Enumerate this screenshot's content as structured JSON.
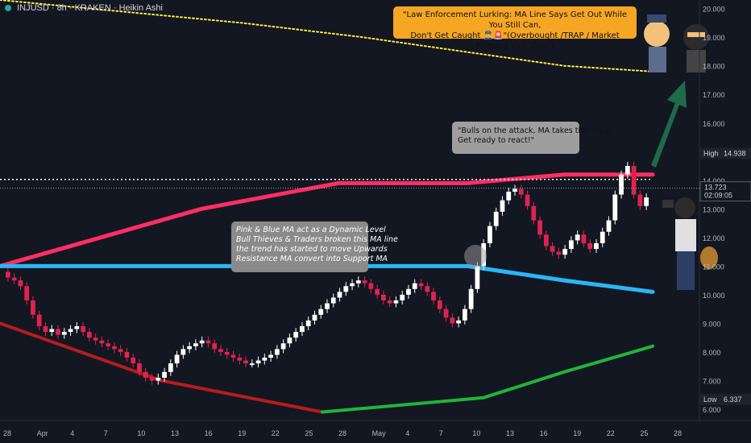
{
  "header": {
    "title": "INJUSD · 8h · KRAKEN · Heikin Ashi"
  },
  "price_scale": {
    "ticks": [
      "20.000",
      "19.000",
      "18.000",
      "17.000",
      "16.000",
      "15.000",
      "14.000",
      "13.000",
      "12.000",
      "11.000",
      "10.000",
      "9.000",
      "8.000",
      "7.000",
      "6.000"
    ],
    "current_price": "13.723",
    "countdown": "02:09:05",
    "high_label": "High",
    "high_value": "14.938",
    "low_label": "Low",
    "low_value": "6.337"
  },
  "time_scale": {
    "ticks": [
      "28",
      "Apr",
      "4",
      "7",
      "10",
      "13",
      "16",
      "19",
      "22",
      "25",
      "28",
      "May",
      "4",
      "7",
      "10",
      "13",
      "16",
      "19",
      "22",
      "25",
      "28"
    ]
  },
  "annotations": {
    "callout_law": {
      "line1": "\"Law Enforcement Lurking: MA Line Says Get Out While You Still Can,",
      "line2": "Don't Get Caught 👮‍♂️🚨\"(Overbought /TRAP / Market Pullback / LQ Zone)"
    },
    "callout_bulls": {
      "line1": "\"Bulls on the attack, MA takes the crack.",
      "line2": "Get ready to react!\""
    },
    "callout_ma": {
      "lines": [
        "Pink & Blue MA act as a Dynamic Level",
        "Bull Thieves & Traders broken this MA line",
        "the trend has started to move Upwards",
        "Resistance MA convert into Support MA"
      ]
    }
  },
  "colors": {
    "background": "#131722",
    "up": "#ffffff",
    "down": "#e0234e",
    "ma_pink": "#ff2e63",
    "ma_blue": "#29b6f6",
    "ma_yellow": "#ffeb3b",
    "ma_red": "#b71c1c",
    "ma_green": "#22b33a",
    "arrow": "#1e6b4a"
  },
  "chart_data": {
    "type": "candlestick",
    "style": "Heikin Ashi",
    "timeframe": "8h",
    "symbol": "INJUSD",
    "exchange": "KRAKEN",
    "ylim": [
      5.6,
      20.3
    ],
    "x_range": [
      "Mar 26",
      "May 30"
    ],
    "candles_close": [
      10.6,
      10.5,
      10.3,
      9.8,
      9.3,
      8.9,
      8.7,
      8.8,
      8.6,
      8.7,
      8.8,
      8.9,
      8.7,
      8.5,
      8.4,
      8.3,
      8.2,
      8.1,
      8.0,
      7.8,
      7.6,
      7.3,
      7.1,
      7.0,
      7.1,
      7.3,
      7.6,
      7.9,
      8.1,
      8.2,
      8.3,
      8.4,
      8.3,
      8.1,
      8.0,
      7.9,
      7.8,
      7.7,
      7.6,
      7.6,
      7.7,
      7.8,
      7.9,
      8.1,
      8.3,
      8.5,
      8.7,
      8.9,
      9.1,
      9.3,
      9.5,
      9.7,
      9.9,
      10.1,
      10.3,
      10.4,
      10.5,
      10.4,
      10.2,
      10.0,
      9.8,
      9.7,
      9.8,
      10.0,
      10.2,
      10.4,
      10.3,
      10.1,
      9.8,
      9.5,
      9.2,
      9.0,
      9.1,
      9.5,
      10.2,
      11.0,
      11.8,
      12.4,
      12.9,
      13.3,
      13.6,
      13.7,
      13.5,
      13.1,
      12.6,
      12.1,
      11.7,
      11.5,
      11.4,
      11.6,
      11.9,
      12.1,
      11.8,
      11.6,
      11.8,
      12.2,
      12.6,
      13.5,
      14.2,
      14.5,
      13.5,
      13.1,
      13.4
    ],
    "moving_averages": [
      {
        "name": "",
        "color": "#ff2e63",
        "points": [
          [
            0,
            11.0
          ],
          [
            250,
            13.0
          ],
          [
            420,
            13.9
          ],
          [
            580,
            13.9
          ],
          [
            700,
            14.2
          ],
          [
            810,
            14.2
          ]
        ]
      },
      {
        "name": "",
        "color": "#29b6f6",
        "points": [
          [
            0,
            11.0
          ],
          [
            580,
            11.0
          ],
          [
            700,
            10.5
          ],
          [
            810,
            10.1
          ]
        ]
      },
      {
        "name": "",
        "color": "#ffeb3b",
        "points": [
          [
            0,
            20.3
          ],
          [
            150,
            19.9
          ],
          [
            300,
            19.5
          ],
          [
            450,
            19.0
          ],
          [
            600,
            18.4
          ],
          [
            700,
            18.0
          ],
          [
            810,
            17.8
          ]
        ]
      },
      {
        "name": "",
        "color": "#b71c1c",
        "points": [
          [
            0,
            9.0
          ],
          [
            200,
            7.0
          ],
          [
            400,
            5.9
          ]
        ]
      },
      {
        "name": "",
        "color": "#22b33a",
        "points": [
          [
            400,
            5.9
          ],
          [
            600,
            6.4
          ],
          [
            700,
            7.3
          ],
          [
            810,
            8.2
          ]
        ]
      }
    ],
    "reference_lines": {
      "high": 14.938,
      "low": 6.337,
      "current": 13.723,
      "dotted_level": 14.2
    }
  }
}
